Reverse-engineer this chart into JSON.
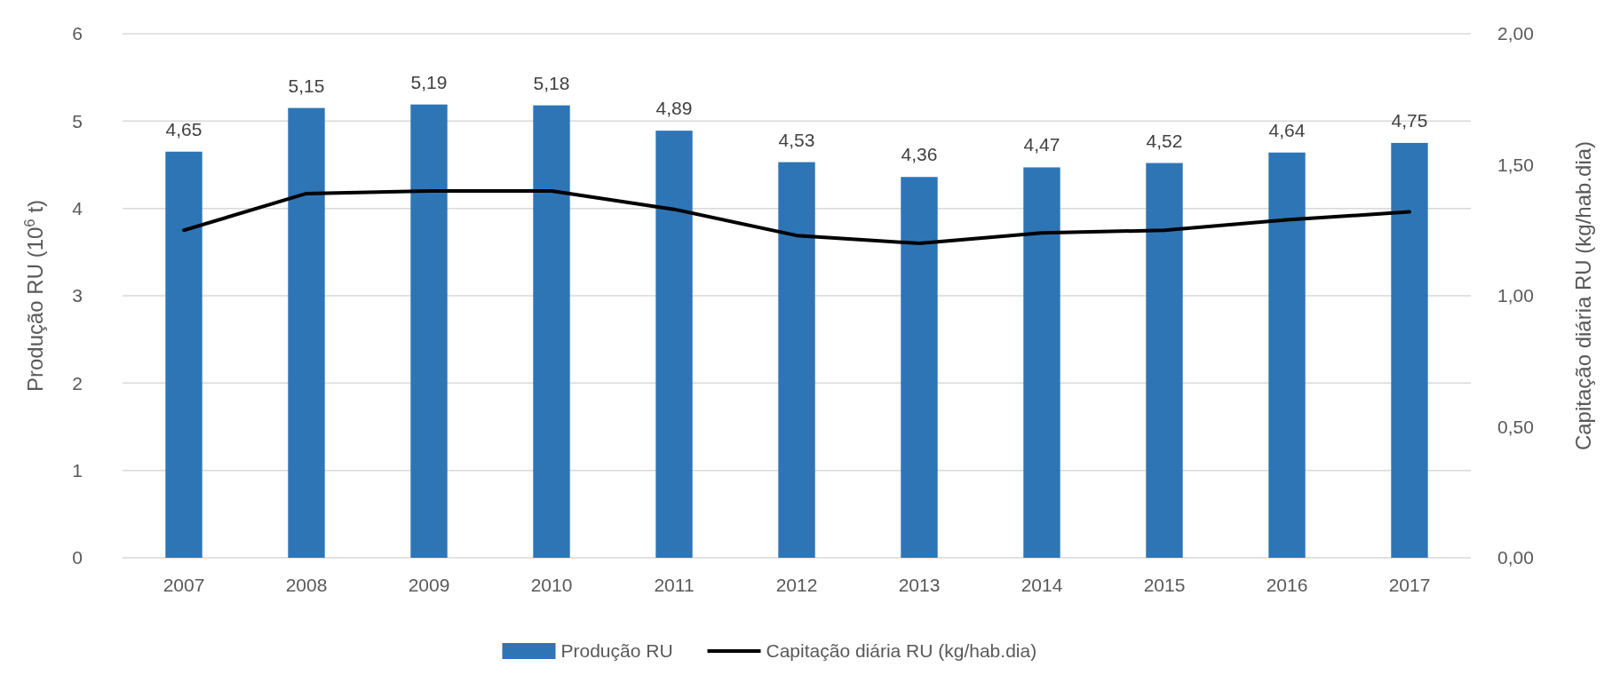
{
  "chart_data": {
    "type": "bar",
    "categories": [
      "2007",
      "2008",
      "2009",
      "2010",
      "2011",
      "2012",
      "2013",
      "2014",
      "2015",
      "2016",
      "2017"
    ],
    "ylabel": "Produção RU (10$^{6}$ t)",
    "y2label": "Capitação diária RU (kg/hab.dia)",
    "ylim": [
      0,
      6
    ],
    "yticks": [
      0,
      1,
      2,
      3,
      4,
      5,
      6
    ],
    "y2lim": [
      0,
      2
    ],
    "y2ticks": [
      {
        "value": 0,
        "label": "0,00"
      },
      {
        "value": 0.5,
        "label": "0,50"
      },
      {
        "value": 1,
        "label": "1,00"
      },
      {
        "value": 1.5,
        "label": "1,50"
      },
      {
        "value": 2,
        "label": "2,00"
      }
    ],
    "grid": "y",
    "legend": "bottom",
    "series": [
      {
        "name": "Produção RU",
        "color": "#2e75b6",
        "values": [
          4.65,
          5.15,
          5.19,
          5.18,
          4.89,
          4.53,
          4.36,
          4.47,
          4.52,
          4.64,
          4.75
        ],
        "value_labels": [
          "4,65",
          "5,15",
          "5,19",
          "5,18",
          "4,89",
          "4,53",
          "4,36",
          "4,47",
          "4,52",
          "4,64",
          "4,75"
        ]
      },
      {
        "name": "Capitação diária RU (kg/hab.dia)",
        "type": "line",
        "axis": "y2",
        "color": "#000000",
        "values": [
          1.25,
          1.39,
          1.4,
          1.4,
          1.33,
          1.23,
          1.2,
          1.24,
          1.25,
          1.29,
          1.32
        ]
      }
    ]
  }
}
